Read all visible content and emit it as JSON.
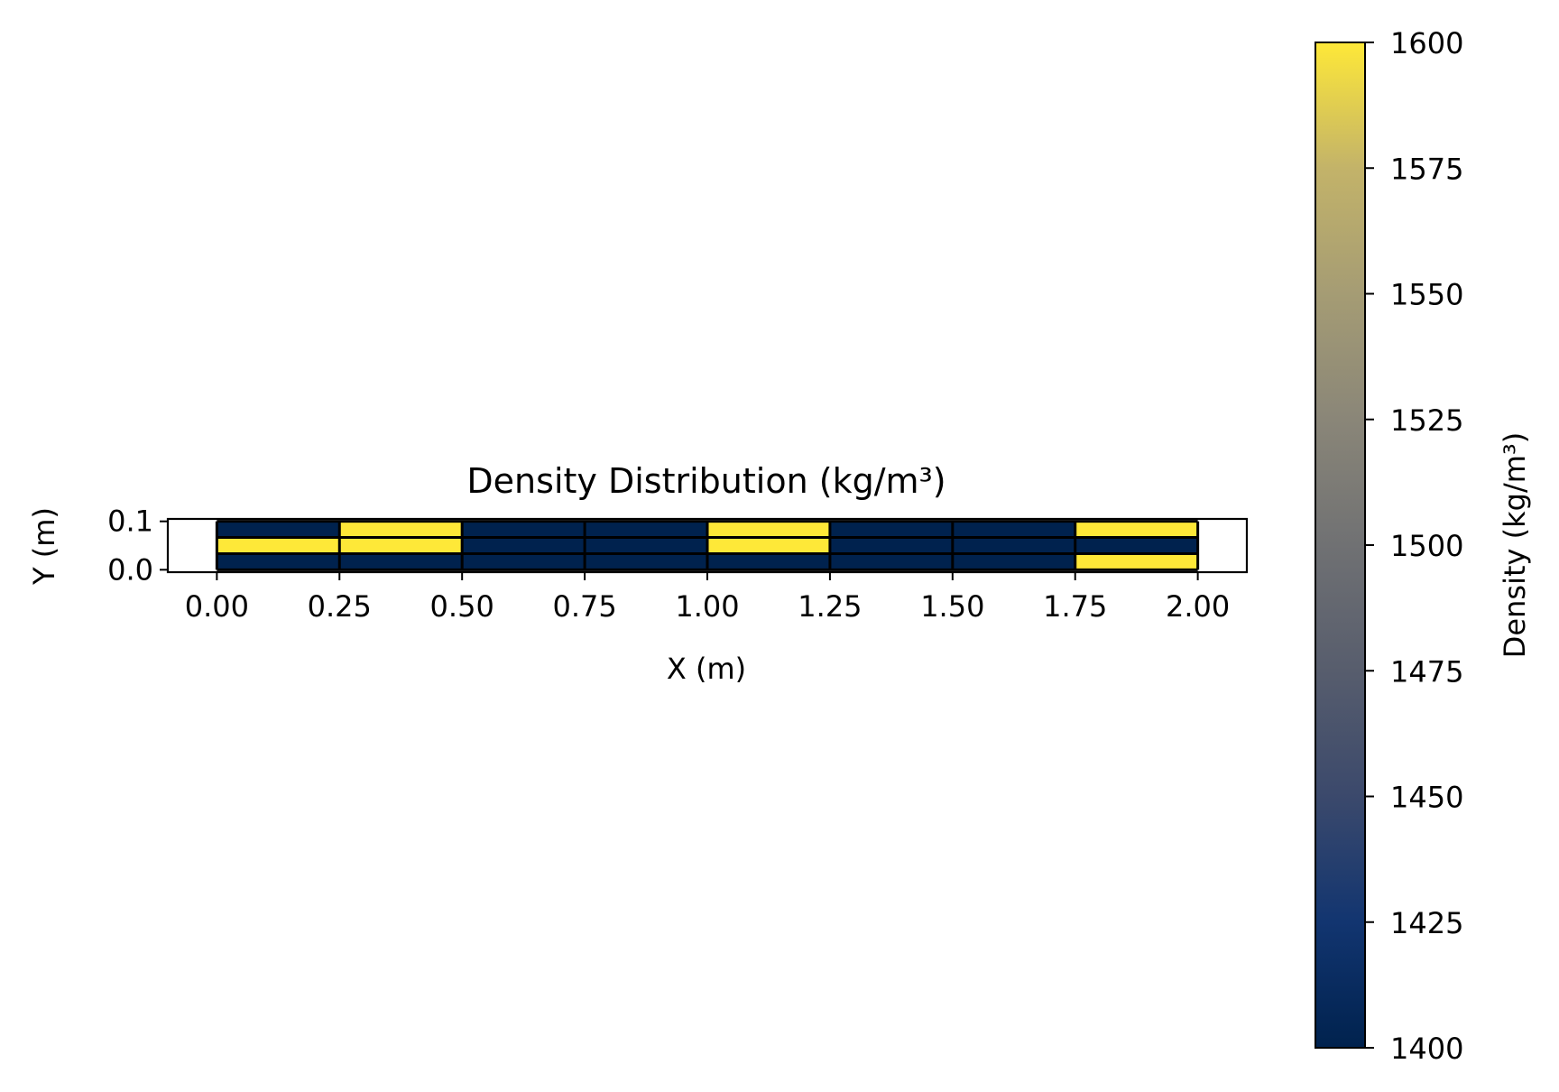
{
  "chart_data": {
    "type": "heatmap",
    "title": "Density Distribution (kg/m³)",
    "xlabel": "X (m)",
    "ylabel": "Y (m)",
    "xlim": [
      -0.1,
      2.1
    ],
    "ylim": [
      -0.005,
      0.105
    ],
    "x_ticks": [
      0.0,
      0.25,
      0.5,
      0.75,
      1.0,
      1.25,
      1.5,
      1.75,
      2.0
    ],
    "x_tick_labels": [
      "0.00",
      "0.25",
      "0.50",
      "0.75",
      "1.00",
      "1.25",
      "1.50",
      "1.75",
      "2.00"
    ],
    "y_ticks": [
      0.0,
      0.1
    ],
    "y_tick_labels": [
      "0.0",
      "0.1"
    ],
    "x_edges": [
      0.0,
      0.25,
      0.5,
      0.75,
      1.0,
      1.25,
      1.5,
      1.75,
      2.0
    ],
    "y_edges": [
      0.0,
      0.0333,
      0.0667,
      0.1
    ],
    "values": [
      [
        1400,
        1400,
        1400,
        1400,
        1400,
        1400,
        1400,
        1600
      ],
      [
        1600,
        1600,
        1400,
        1400,
        1600,
        1400,
        1400,
        1400
      ],
      [
        1400,
        1600,
        1400,
        1400,
        1600,
        1400,
        1400,
        1600
      ]
    ],
    "colorbar": {
      "label": "Density (kg/m³)",
      "min": 1400,
      "max": 1600,
      "ticks": [
        1400,
        1425,
        1450,
        1475,
        1500,
        1525,
        1550,
        1575,
        1600
      ],
      "tick_labels": [
        "1400",
        "1425",
        "1450",
        "1475",
        "1500",
        "1525",
        "1550",
        "1575",
        "1600"
      ],
      "colormap": "cividis"
    },
    "grid": false,
    "colors": {
      "low": "#00224e",
      "high": "#fee838",
      "cell_edge": "#000000"
    }
  }
}
